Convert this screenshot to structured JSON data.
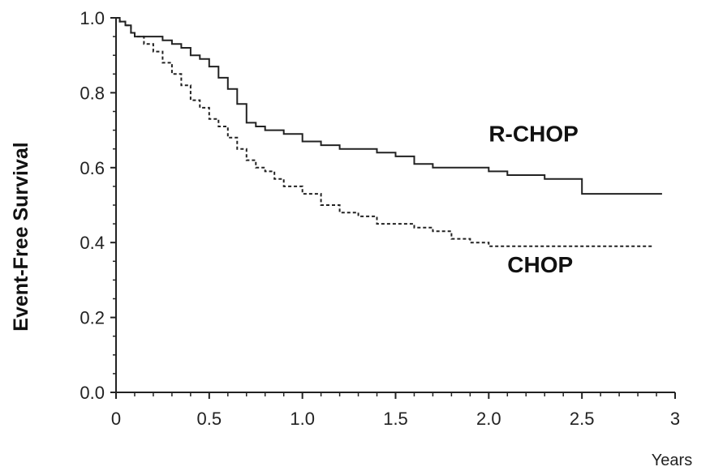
{
  "chart_data": {
    "type": "line",
    "ylabel": "Event-Free Survival",
    "xlabel": "Years",
    "xlim": [
      0,
      3
    ],
    "ylim": [
      0,
      1
    ],
    "x_ticks": [
      "0",
      "0.5",
      "1.0",
      "1.5",
      "2.0",
      "2.5",
      "3"
    ],
    "x_tick_values": [
      0,
      0.5,
      1.0,
      1.5,
      2.0,
      2.5,
      3
    ],
    "y_ticks": [
      "0.0",
      "0.2",
      "0.4",
      "0.6",
      "0.8",
      "1.0"
    ],
    "y_tick_values": [
      0.0,
      0.2,
      0.4,
      0.6,
      0.8,
      1.0
    ],
    "grid": false,
    "series": [
      {
        "name": "R-CHOP",
        "style": "solid",
        "color": "#222222",
        "x": [
          0,
          0.02,
          0.05,
          0.08,
          0.1,
          0.15,
          0.2,
          0.25,
          0.3,
          0.35,
          0.4,
          0.45,
          0.5,
          0.55,
          0.6,
          0.65,
          0.7,
          0.75,
          0.8,
          0.9,
          1.0,
          1.1,
          1.2,
          1.3,
          1.4,
          1.5,
          1.6,
          1.7,
          1.8,
          1.9,
          2.0,
          2.1,
          2.2,
          2.3,
          2.4,
          2.5,
          2.6,
          2.7,
          2.8,
          2.93
        ],
        "y": [
          1.0,
          0.99,
          0.98,
          0.96,
          0.95,
          0.95,
          0.95,
          0.94,
          0.93,
          0.92,
          0.9,
          0.89,
          0.87,
          0.84,
          0.81,
          0.77,
          0.72,
          0.71,
          0.7,
          0.69,
          0.67,
          0.66,
          0.65,
          0.65,
          0.64,
          0.63,
          0.61,
          0.6,
          0.6,
          0.6,
          0.59,
          0.58,
          0.58,
          0.57,
          0.57,
          0.53,
          0.53,
          0.53,
          0.53,
          0.53
        ]
      },
      {
        "name": "CHOP",
        "style": "dashed",
        "color": "#222222",
        "x": [
          0,
          0.02,
          0.05,
          0.08,
          0.1,
          0.15,
          0.2,
          0.25,
          0.3,
          0.35,
          0.4,
          0.45,
          0.5,
          0.55,
          0.6,
          0.65,
          0.7,
          0.75,
          0.8,
          0.85,
          0.9,
          1.0,
          1.1,
          1.2,
          1.3,
          1.4,
          1.5,
          1.6,
          1.7,
          1.8,
          1.9,
          2.0,
          2.1,
          2.2,
          2.4,
          2.6,
          2.88
        ],
        "y": [
          1.0,
          0.99,
          0.98,
          0.96,
          0.95,
          0.93,
          0.91,
          0.88,
          0.85,
          0.82,
          0.78,
          0.76,
          0.73,
          0.71,
          0.68,
          0.65,
          0.62,
          0.6,
          0.59,
          0.57,
          0.55,
          0.53,
          0.5,
          0.48,
          0.47,
          0.45,
          0.45,
          0.44,
          0.43,
          0.41,
          0.4,
          0.39,
          0.39,
          0.39,
          0.39,
          0.39,
          0.39
        ]
      }
    ],
    "annotations": [
      {
        "text": "R-CHOP",
        "series": "R-CHOP",
        "x": 2.0,
        "y": 0.67
      },
      {
        "text": "CHOP",
        "series": "CHOP",
        "x": 2.1,
        "y": 0.32
      }
    ]
  }
}
